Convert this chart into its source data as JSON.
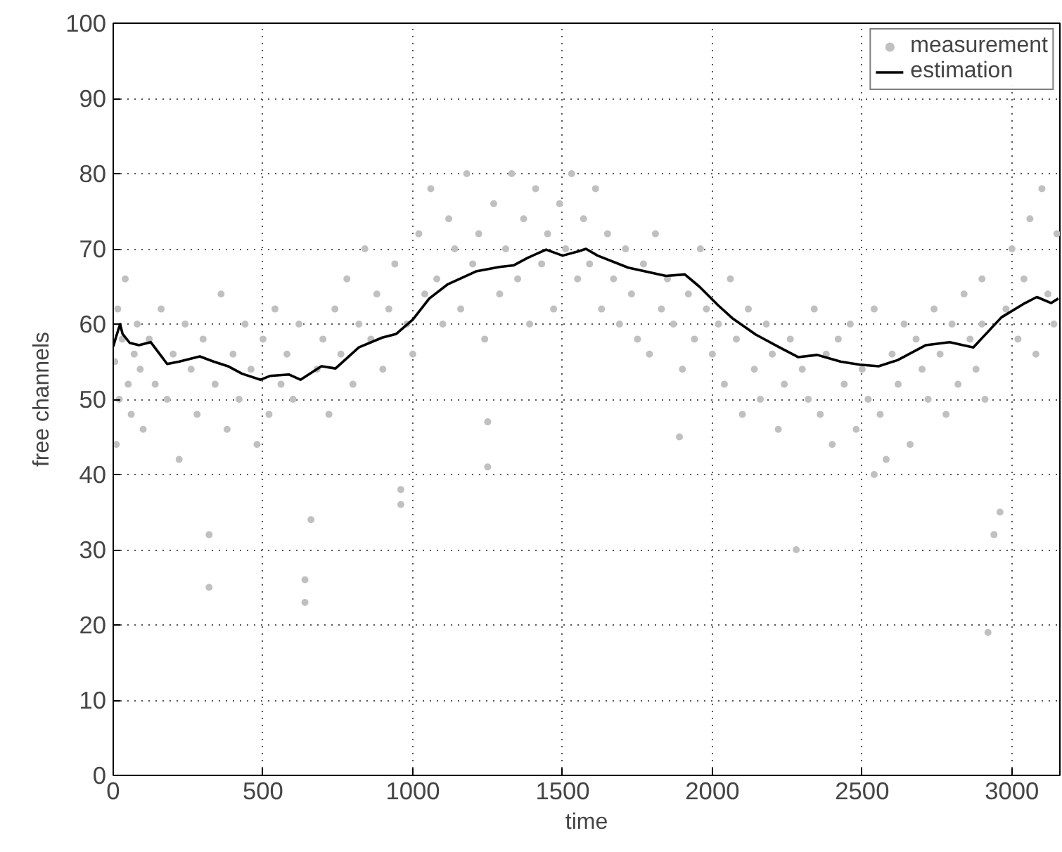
{
  "chart_data": {
    "type": "scatter",
    "xlabel": "time",
    "ylabel": "free channels",
    "xlim": [
      0,
      3160
    ],
    "ylim": [
      0,
      100
    ],
    "xticks": [
      0,
      500,
      1000,
      1500,
      2000,
      2500,
      3000
    ],
    "yticks": [
      0,
      10,
      20,
      30,
      40,
      50,
      60,
      70,
      80,
      90,
      100
    ],
    "grid": true,
    "legend": "top right",
    "marker": "circle",
    "series": [
      {
        "name": "measurement",
        "color": "#c0c0c0",
        "x": [
          5,
          10,
          15,
          20,
          30,
          40,
          50,
          60,
          70,
          80,
          90,
          100,
          120,
          140,
          160,
          180,
          200,
          220,
          240,
          260,
          280,
          300,
          320,
          320,
          340,
          360,
          380,
          400,
          420,
          440,
          460,
          480,
          500,
          520,
          540,
          560,
          580,
          600,
          620,
          640,
          640,
          660,
          680,
          700,
          720,
          740,
          760,
          780,
          800,
          820,
          840,
          860,
          880,
          900,
          920,
          940,
          960,
          960,
          980,
          1000,
          1020,
          1040,
          1060,
          1080,
          1100,
          1120,
          1140,
          1160,
          1180,
          1200,
          1220,
          1240,
          1250,
          1250,
          1270,
          1290,
          1310,
          1330,
          1350,
          1370,
          1390,
          1410,
          1430,
          1450,
          1470,
          1490,
          1510,
          1530,
          1550,
          1570,
          1590,
          1610,
          1630,
          1650,
          1670,
          1690,
          1710,
          1730,
          1750,
          1770,
          1790,
          1810,
          1830,
          1850,
          1870,
          1890,
          1900,
          1920,
          1940,
          1960,
          1980,
          2000,
          2020,
          2040,
          2060,
          2080,
          2100,
          2120,
          2140,
          2160,
          2180,
          2200,
          2220,
          2240,
          2260,
          2280,
          2300,
          2320,
          2340,
          2360,
          2380,
          2400,
          2420,
          2440,
          2460,
          2480,
          2500,
          2520,
          2540,
          2540,
          2560,
          2580,
          2600,
          2620,
          2640,
          2660,
          2680,
          2700,
          2720,
          2740,
          2760,
          2780,
          2800,
          2820,
          2840,
          2860,
          2880,
          2900,
          2900,
          2910,
          2920,
          2940,
          2960,
          2980,
          3000,
          3020,
          3040,
          3060,
          3080,
          3100,
          3120,
          3140,
          3150
        ],
        "values": [
          55,
          44,
          62,
          50,
          58,
          66,
          52,
          48,
          56,
          60,
          54,
          46,
          58,
          52,
          62,
          50,
          56,
          42,
          60,
          54,
          48,
          58,
          25,
          32,
          52,
          64,
          46,
          56,
          50,
          60,
          54,
          44,
          58,
          48,
          62,
          52,
          56,
          50,
          60,
          23,
          26,
          34,
          54,
          58,
          48,
          62,
          56,
          66,
          52,
          60,
          70,
          58,
          64,
          54,
          62,
          68,
          36,
          38,
          60,
          56,
          72,
          64,
          78,
          66,
          60,
          74,
          70,
          62,
          80,
          68,
          72,
          58,
          41,
          47,
          76,
          64,
          70,
          80,
          66,
          74,
          60,
          78,
          68,
          72,
          62,
          76,
          70,
          80,
          66,
          74,
          68,
          78,
          62,
          72,
          66,
          60,
          70,
          64,
          58,
          68,
          56,
          72,
          62,
          66,
          60,
          45,
          54,
          64,
          58,
          70,
          62,
          56,
          60,
          52,
          66,
          58,
          48,
          62,
          54,
          50,
          60,
          56,
          46,
          52,
          58,
          30,
          54,
          50,
          62,
          48,
          56,
          44,
          58,
          52,
          60,
          46,
          54,
          50,
          62,
          40,
          48,
          42,
          56,
          52,
          60,
          44,
          58,
          54,
          50,
          62,
          56,
          48,
          60,
          52,
          64,
          58,
          54,
          66,
          60,
          50,
          19,
          32,
          35,
          62,
          70,
          58,
          66,
          74,
          56,
          78,
          64,
          60,
          72
        ]
      },
      {
        "name": "estimation",
        "type": "line",
        "color": "#000000",
        "marker": "none",
        "line_style": "solid",
        "x": [
          0,
          8,
          23,
          31,
          55,
          86,
          125,
          180,
          219,
          289,
          336,
          383,
          430,
          492,
          523,
          586,
          625,
          695,
          742,
          820,
          898,
          945,
          1000,
          1055,
          1117,
          1211,
          1289,
          1336,
          1383,
          1445,
          1500,
          1555,
          1578,
          1617,
          1719,
          1845,
          1908,
          1956,
          2019,
          2066,
          2145,
          2224,
          2287,
          2350,
          2429,
          2492,
          2555,
          2618,
          2713,
          2792,
          2871,
          2965,
          3044,
          3083,
          3131,
          3155
        ],
        "values": [
          57,
          58.1,
          60,
          58.7,
          57.5,
          57.2,
          57.6,
          54.7,
          55,
          55.7,
          55,
          54.4,
          53.4,
          52.6,
          53.1,
          53.3,
          52.6,
          54.4,
          54.1,
          56.9,
          58.2,
          58.7,
          60.6,
          63.4,
          65.3,
          67,
          67.6,
          67.8,
          68.8,
          69.9,
          69.1,
          69.7,
          70,
          69.1,
          67.5,
          66.4,
          66.6,
          65,
          62.5,
          60.8,
          58.6,
          56.9,
          55.6,
          55.9,
          55,
          54.6,
          54.4,
          55.2,
          57.2,
          57.6,
          56.9,
          60.9,
          62.8,
          63.6,
          62.8,
          63.4
        ]
      }
    ]
  }
}
